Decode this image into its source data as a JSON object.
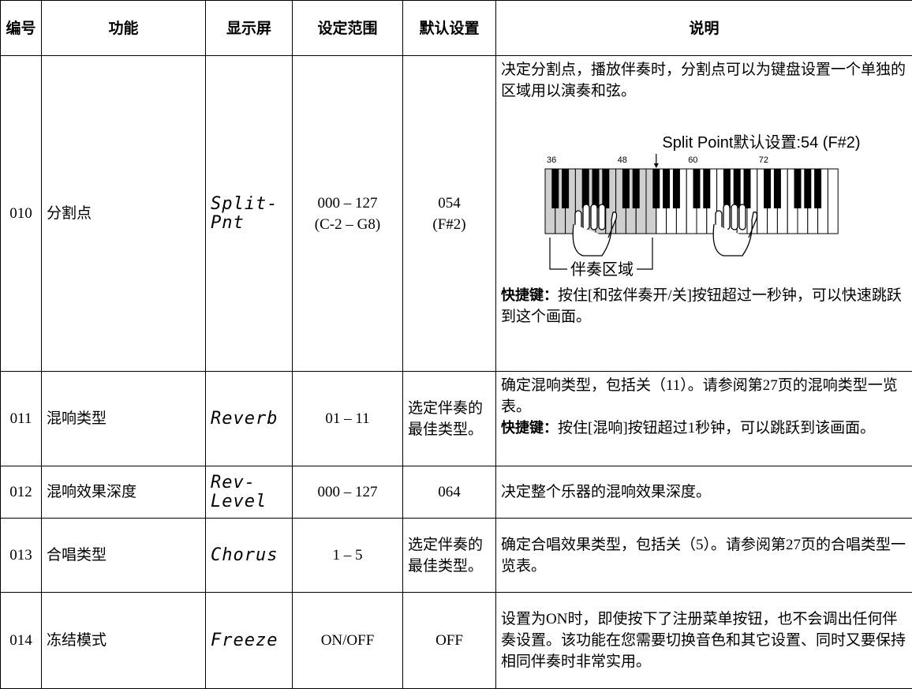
{
  "table": {
    "header": [
      "编号",
      "功能",
      "显示屏",
      "设定范围",
      "默认设置",
      "说明"
    ],
    "rows": [
      {
        "number": "010",
        "function": "分割点",
        "display": [
          "Split-",
          "Pnt"
        ],
        "range": [
          "000 – 127",
          "(C-2 – G8)"
        ],
        "default": [
          "054",
          "(F#2)"
        ],
        "description": {
          "text": "决定分割点，播放伴奏时，分割点可以为键盘设置一个单独的区域用以演奏和弦。",
          "shortcut_label": "快捷键：",
          "shortcut_text": "按住[和弦伴奏开/关]按钮超过一秒钟，可以快速跳跃到这个画面。"
        }
      },
      {
        "number": "011",
        "function": "混响类型",
        "display": [
          "Reverb"
        ],
        "range": [
          "01 – 11"
        ],
        "default": [
          "选定伴奏的最佳类型。"
        ],
        "description": {
          "text": "确定混响类型，包括关（11）。请参阅第27页的混响类型一览表。",
          "shortcut_label": "快捷键：",
          "shortcut_text": "按住[混响]按钮超过1秒钟，可以跳跃到该画面。"
        }
      },
      {
        "number": "012",
        "function": "混响效果深度",
        "display": [
          "Rev-",
          "Level"
        ],
        "range": [
          "000 – 127"
        ],
        "default": [
          "064"
        ],
        "description": {
          "text": "决定整个乐器的混响效果深度。"
        }
      },
      {
        "number": "013",
        "function": "合唱类型",
        "display": [
          "Chorus"
        ],
        "range": [
          "1 – 5"
        ],
        "default": [
          "选定伴奏的最佳类型。"
        ],
        "description": {
          "text": "确定合唱效果类型，包括关（5）。请参阅第27页的合唱类型一览表。"
        }
      },
      {
        "number": "014",
        "function": "冻结模式",
        "display": [
          "Freeze"
        ],
        "range": [
          "ON/OFF"
        ],
        "default": [
          "OFF"
        ],
        "description": {
          "text": "设置为ON时，即使按下了注册菜单按钮，也不会调出任何伴奏设置。该功能在您需要切换音色和其它设置、同时又要保持相同伴奏时非常实用。"
        }
      }
    ]
  },
  "diagram": {
    "caption": "Split Point默认设置:54 (F#2)",
    "key_numbers": [
      "36",
      "48",
      "60",
      "72"
    ],
    "zone_label": "伴奏区域"
  }
}
